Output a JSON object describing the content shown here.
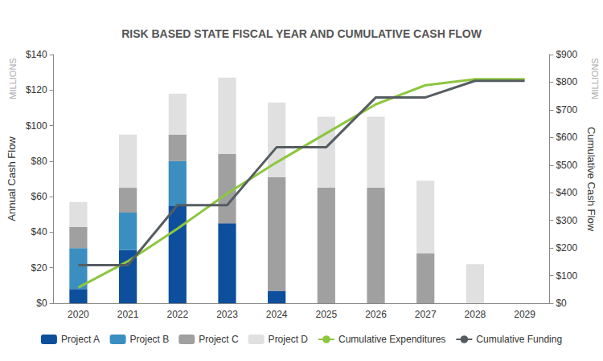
{
  "chart_data": {
    "type": "bar",
    "title": "RISK BASED STATE FISCAL YEAR AND CUMULATIVE CASH FLOW",
    "ylabel": "Annual Cash Flow",
    "y2label": "Cumulative Cash Flow",
    "y_unit_label": "MILLIONS",
    "y2_unit_label": "MILLIONS",
    "categories": [
      "2020",
      "2021",
      "2022",
      "2023",
      "2024",
      "2025",
      "2026",
      "2027",
      "2028",
      "2029"
    ],
    "stacked": true,
    "grid": false,
    "legend": "bottom",
    "ylim": [
      0,
      140
    ],
    "yticks": [
      {
        "value": 0,
        "label": "$0"
      },
      {
        "value": 20,
        "label": "$20"
      },
      {
        "value": 40,
        "label": "$40"
      },
      {
        "value": 60,
        "label": "$60"
      },
      {
        "value": 80,
        "label": "$80"
      },
      {
        "value": 100,
        "label": "$100"
      },
      {
        "value": 120,
        "label": "$120"
      },
      {
        "value": 140,
        "label": "$140"
      }
    ],
    "y2lim": [
      0,
      900
    ],
    "y2ticks": [
      {
        "value": 0,
        "label": "$0"
      },
      {
        "value": 100,
        "label": "$100"
      },
      {
        "value": 200,
        "label": "$200"
      },
      {
        "value": 300,
        "label": "$300"
      },
      {
        "value": 400,
        "label": "$400"
      },
      {
        "value": 500,
        "label": "$500"
      },
      {
        "value": 600,
        "label": "$600"
      },
      {
        "value": 700,
        "label": "$700"
      },
      {
        "value": 800,
        "label": "$800"
      },
      {
        "value": 900,
        "label": "$900"
      }
    ],
    "series": [
      {
        "name": "Project A",
        "type": "bar",
        "color": "#0d4f9c",
        "values": [
          8,
          30,
          55,
          45,
          7,
          0,
          0,
          0,
          0,
          0
        ]
      },
      {
        "name": "Project B",
        "type": "bar",
        "color": "#3a8fc0",
        "values": [
          23,
          21,
          25,
          0,
          0,
          0,
          0,
          0,
          0,
          0
        ]
      },
      {
        "name": "Project C",
        "type": "bar",
        "color": "#a0a0a0",
        "values": [
          12,
          14,
          15,
          39,
          64,
          65,
          65,
          28,
          0,
          0
        ]
      },
      {
        "name": "Project D",
        "type": "bar",
        "color": "#e0e0e0",
        "values": [
          14,
          30,
          23,
          43,
          42,
          40,
          40,
          41,
          22,
          0
        ]
      },
      {
        "name": "Cumulative Expenditures",
        "type": "line",
        "axis": "y2",
        "color": "#8dc63f",
        "values": [
          57,
          152,
          270,
          397,
          510,
          615,
          720,
          789,
          811,
          811
        ]
      },
      {
        "name": "Cumulative Funding",
        "type": "line",
        "axis": "y2",
        "color": "#555d61",
        "values": [
          138,
          138,
          355,
          355,
          565,
          565,
          745,
          745,
          805,
          805
        ]
      }
    ]
  }
}
